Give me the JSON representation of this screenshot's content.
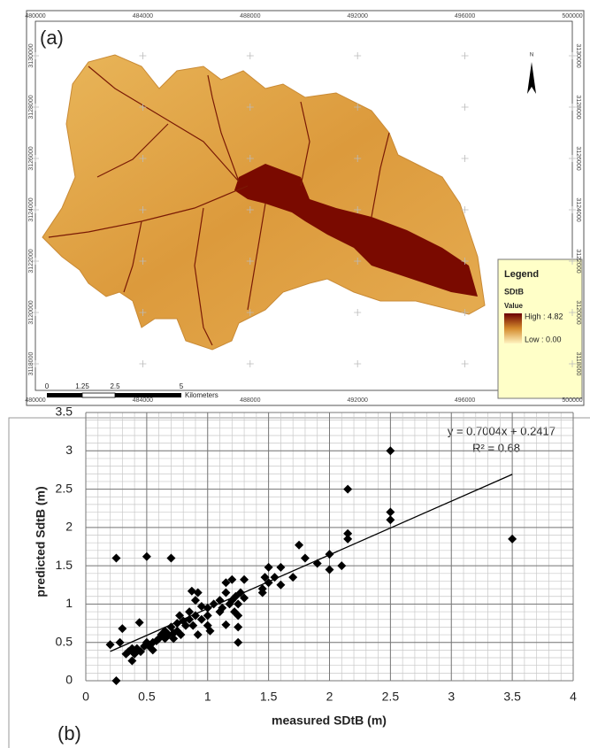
{
  "map": {
    "panel_label": "(a)",
    "xticks": [
      480000,
      484000,
      488000,
      492000,
      496000,
      500000
    ],
    "yticks": [
      3130000,
      3128000,
      3126000,
      3124000,
      3122000,
      3120000,
      3118000
    ],
    "xlim": [
      480000,
      500000
    ],
    "ylim": [
      3118000,
      3130000
    ],
    "north": "N",
    "scale_bar": {
      "labels": [
        0,
        1.25,
        2.5,
        5
      ],
      "unit": "Kilometers"
    },
    "legend": {
      "title": "Legend",
      "layer": "SDtB",
      "field": "Value",
      "high": "High : 4.82",
      "low": "Low : 0.00"
    }
  },
  "chart_data": {
    "type": "scatter",
    "panel_label": "(b)",
    "xlabel": "measured SDtB (m)",
    "ylabel": "predicted SdtB (m)",
    "color": "#000000",
    "x": [
      0.2,
      0.25,
      0.25,
      0.28,
      0.3,
      0.33,
      0.35,
      0.38,
      0.38,
      0.4,
      0.42,
      0.44,
      0.45,
      0.48,
      0.5,
      0.5,
      0.52,
      0.55,
      0.55,
      0.58,
      0.6,
      0.62,
      0.65,
      0.65,
      0.68,
      0.7,
      0.7,
      0.72,
      0.72,
      0.75,
      0.75,
      0.77,
      0.78,
      0.8,
      0.82,
      0.85,
      0.85,
      0.87,
      0.88,
      0.9,
      0.9,
      0.92,
      0.92,
      0.95,
      0.95,
      1.0,
      1.0,
      1.0,
      1.02,
      1.05,
      1.1,
      1.1,
      1.12,
      1.15,
      1.15,
      1.15,
      1.18,
      1.2,
      1.2,
      1.22,
      1.23,
      1.25,
      1.25,
      1.25,
      1.25,
      1.27,
      1.3,
      1.3,
      1.45,
      1.45,
      1.47,
      1.5,
      1.5,
      1.55,
      1.6,
      1.6,
      1.7,
      1.75,
      1.8,
      1.9,
      2.0,
      2.0,
      2.1,
      2.15,
      2.15,
      2.15,
      2.5,
      2.5,
      2.5,
      3.5
    ],
    "values": [
      0.47,
      1.6,
      0.0,
      0.5,
      0.68,
      0.35,
      0.38,
      0.26,
      0.42,
      0.35,
      0.42,
      0.76,
      0.38,
      0.45,
      1.62,
      0.5,
      0.45,
      0.4,
      0.5,
      0.52,
      0.55,
      0.6,
      0.55,
      0.65,
      0.6,
      1.6,
      0.7,
      0.62,
      0.55,
      0.75,
      0.65,
      0.85,
      0.6,
      0.78,
      0.72,
      0.9,
      0.8,
      1.17,
      0.72,
      1.05,
      0.85,
      1.15,
      0.6,
      0.8,
      0.97,
      0.85,
      0.72,
      0.95,
      0.65,
      1.0,
      0.9,
      1.05,
      0.95,
      1.15,
      1.28,
      0.73,
      1.0,
      1.05,
      1.32,
      0.9,
      1.1,
      0.5,
      0.7,
      0.85,
      1.0,
      1.15,
      1.08,
      1.32,
      1.15,
      1.2,
      1.35,
      1.28,
      1.48,
      1.35,
      1.25,
      1.48,
      1.35,
      1.77,
      1.6,
      1.53,
      1.65,
      1.45,
      1.5,
      1.85,
      1.92,
      2.5,
      3.0,
      2.2,
      2.1,
      1.85
    ],
    "trendline": {
      "slope": 0.7004,
      "intercept": 0.2417,
      "xrange": [
        0.2,
        3.5
      ]
    },
    "equation": "y = 0.7004x + 0.2417",
    "r_squared": "R² = 0.68",
    "xlim": [
      0,
      4
    ],
    "ylim": [
      0,
      3.5
    ],
    "xticks": [
      0,
      0.5,
      1,
      1.5,
      2,
      2.5,
      3,
      3.5,
      4
    ],
    "yticks": [
      0,
      0.5,
      1,
      1.5,
      2,
      2.5,
      3,
      3.5
    ],
    "minor_grid": 0.1,
    "grid": true
  }
}
